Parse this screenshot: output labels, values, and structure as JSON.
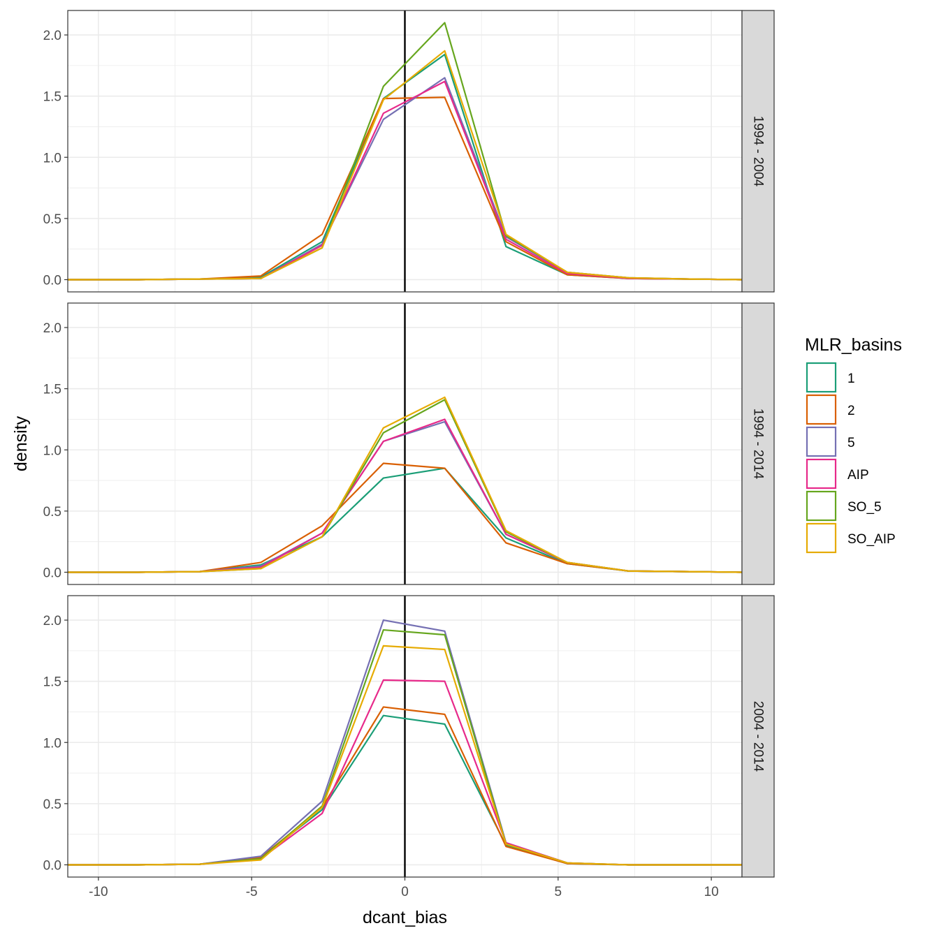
{
  "chart_data": {
    "type": "line",
    "xlabel": "dcant_bias",
    "ylabel": "density",
    "xlim": [
      -11,
      11
    ],
    "ylim": [
      -0.1,
      2.2
    ],
    "x_ticks": [
      -10,
      -5,
      0,
      5,
      10
    ],
    "x_tick_labels": [
      "-10",
      "-5",
      "0",
      "5",
      "10"
    ],
    "y_ticks": [
      0.0,
      0.5,
      1.0,
      1.5,
      2.0
    ],
    "y_tick_labels": [
      "0.0",
      "0.5",
      "1.0",
      "1.5",
      "2.0"
    ],
    "vline_x": 0,
    "grid": true,
    "legend": {
      "title": "MLR_basins",
      "position": "right",
      "entries": [
        "1",
        "2",
        "5",
        "AIP",
        "SO_5",
        "SO_AIP"
      ]
    },
    "colors": {
      "1": "#1b9e77",
      "2": "#d95f02",
      "5": "#7570b3",
      "AIP": "#e7298a",
      "SO_5": "#66a61e",
      "SO_AIP": "#e6ab02"
    },
    "x": [
      -11,
      -10.7,
      -8.7,
      -6.7,
      -4.7,
      -2.7,
      -0.7,
      1.3,
      3.3,
      5.3,
      7.3,
      9.3,
      11
    ],
    "panels": [
      {
        "strip": "1994 - 2004",
        "series": [
          {
            "name": "1",
            "values": [
              0,
              0,
              0,
              0.005,
              0.02,
              0.31,
              1.48,
              1.84,
              0.27,
              0.04,
              0.01,
              0.005,
              0
            ]
          },
          {
            "name": "2",
            "values": [
              0,
              0,
              0,
              0.005,
              0.03,
              0.37,
              1.48,
              1.49,
              0.31,
              0.04,
              0.01,
              0.005,
              0
            ]
          },
          {
            "name": "5",
            "values": [
              0,
              0,
              0,
              0.005,
              0.01,
              0.29,
              1.31,
              1.65,
              0.35,
              0.06,
              0.015,
              0.005,
              0
            ]
          },
          {
            "name": "AIP",
            "values": [
              0,
              0,
              0,
              0.005,
              0.01,
              0.28,
              1.36,
              1.62,
              0.33,
              0.05,
              0.01,
              0.005,
              0
            ]
          },
          {
            "name": "SO_5",
            "values": [
              0,
              0,
              0,
              0.005,
              0.01,
              0.26,
              1.58,
              2.1,
              0.36,
              0.06,
              0.015,
              0.005,
              0
            ]
          },
          {
            "name": "SO_AIP",
            "values": [
              0,
              0,
              0,
              0.005,
              0.01,
              0.26,
              1.47,
              1.87,
              0.37,
              0.06,
              0.015,
              0.005,
              0
            ]
          }
        ]
      },
      {
        "strip": "1994 - 2014",
        "series": [
          {
            "name": "1",
            "values": [
              0,
              0,
              0,
              0.005,
              0.06,
              0.29,
              0.77,
              0.85,
              0.28,
              0.07,
              0.01,
              0.005,
              0
            ]
          },
          {
            "name": "2",
            "values": [
              0,
              0,
              0,
              0.005,
              0.08,
              0.38,
              0.89,
              0.85,
              0.24,
              0.07,
              0.01,
              0.005,
              0
            ]
          },
          {
            "name": "5",
            "values": [
              0,
              0,
              0,
              0.005,
              0.05,
              0.32,
              1.07,
              1.23,
              0.31,
              0.08,
              0.01,
              0.005,
              0
            ]
          },
          {
            "name": "AIP",
            "values": [
              0,
              0,
              0,
              0.005,
              0.04,
              0.32,
              1.07,
              1.25,
              0.31,
              0.08,
              0.01,
              0.005,
              0
            ]
          },
          {
            "name": "SO_5",
            "values": [
              0,
              0,
              0,
              0.005,
              0.03,
              0.29,
              1.14,
              1.41,
              0.33,
              0.08,
              0.01,
              0.005,
              0
            ]
          },
          {
            "name": "SO_AIP",
            "values": [
              0,
              0,
              0,
              0.005,
              0.03,
              0.29,
              1.18,
              1.43,
              0.34,
              0.08,
              0.01,
              0.005,
              0
            ]
          }
        ]
      },
      {
        "strip": "2004 - 2014",
        "series": [
          {
            "name": "1",
            "values": [
              0,
              0,
              0,
              0.005,
              0.06,
              0.45,
              1.22,
              1.15,
              0.16,
              0.01,
              0,
              0,
              0
            ]
          },
          {
            "name": "2",
            "values": [
              0,
              0,
              0,
              0.005,
              0.06,
              0.47,
              1.29,
              1.23,
              0.15,
              0.01,
              0,
              0,
              0
            ]
          },
          {
            "name": "5",
            "values": [
              0,
              0,
              0,
              0.005,
              0.07,
              0.52,
              2.0,
              1.91,
              0.18,
              0.015,
              0,
              0,
              0
            ]
          },
          {
            "name": "AIP",
            "values": [
              0,
              0,
              0,
              0.005,
              0.05,
              0.42,
              1.51,
              1.5,
              0.18,
              0.015,
              0,
              0,
              0
            ]
          },
          {
            "name": "SO_5",
            "values": [
              0,
              0,
              0,
              0.005,
              0.05,
              0.48,
              1.92,
              1.88,
              0.17,
              0.015,
              0,
              0,
              0
            ]
          },
          {
            "name": "SO_AIP",
            "values": [
              0,
              0,
              0,
              0.005,
              0.04,
              0.47,
              1.79,
              1.76,
              0.17,
              0.015,
              0,
              0,
              0
            ]
          }
        ]
      }
    ]
  }
}
